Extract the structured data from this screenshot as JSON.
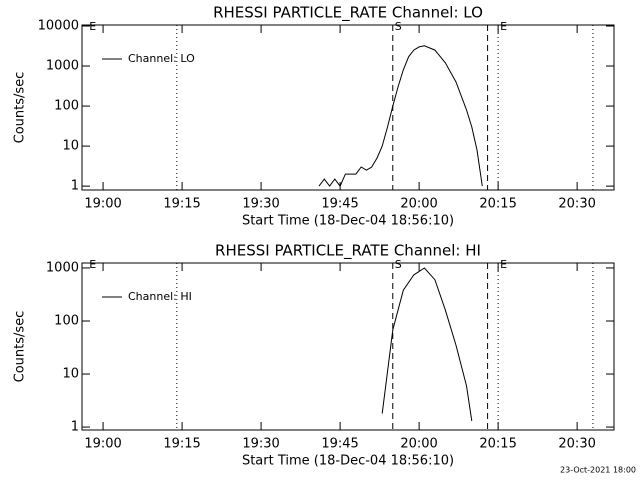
{
  "chart_data": [
    {
      "type": "line",
      "title": "RHESSI PARTICLE_RATE Channel: LO",
      "xlabel": "Start Time (18-Dec-04 18:56:10)",
      "ylabel": "Counts/sec",
      "log_y": true,
      "xlim": [
        "18:56",
        "20:37"
      ],
      "ylim": [
        0.8,
        10600
      ],
      "xticks": [
        "19:00",
        "19:15",
        "19:30",
        "19:45",
        "20:00",
        "20:15",
        "20:30"
      ],
      "yticks": [
        1,
        10,
        100,
        1000,
        10000
      ],
      "x": [
        "19:41",
        "19:42",
        "19:43",
        "19:44",
        "19:45",
        "19:46",
        "19:47",
        "19:48",
        "19:49",
        "19:50",
        "19:51",
        "19:52",
        "19:53",
        "19:54",
        "19:55",
        "19:56",
        "19:57",
        "19:58",
        "19:59",
        "20:00",
        "20:01",
        "20:03",
        "20:05",
        "20:07",
        "20:09",
        "20:10",
        "20:11",
        "20:12"
      ],
      "series": [
        {
          "name": "Channel: LO",
          "color": "#000000",
          "values": [
            1,
            1.5,
            1,
            1.5,
            1,
            2,
            2,
            2,
            3,
            2.5,
            3,
            5,
            10,
            30,
            100,
            300,
            800,
            1700,
            2500,
            3000,
            3200,
            2500,
            1200,
            400,
            80,
            30,
            8,
            1
          ]
        }
      ],
      "markers": [
        {
          "x": "18:57",
          "label": "E"
        },
        {
          "x": "19:14",
          "style": "dotted"
        },
        {
          "x": "19:55",
          "style": "dashed",
          "label": "S"
        },
        {
          "x": "20:13",
          "style": "dashed"
        },
        {
          "x": "20:15",
          "style": "dotted",
          "label": "E"
        },
        {
          "x": "20:33",
          "style": "dotted"
        }
      ]
    },
    {
      "type": "line",
      "title": "RHESSI PARTICLE_RATE Channel: HI",
      "xlabel": "Start Time (18-Dec-04 18:56:10)",
      "ylabel": "Counts/sec",
      "log_y": true,
      "xlim": [
        "18:56",
        "20:37"
      ],
      "ylim": [
        0.88,
        1240
      ],
      "xticks": [
        "19:00",
        "19:15",
        "19:30",
        "19:45",
        "20:00",
        "20:15",
        "20:30"
      ],
      "yticks": [
        1,
        10,
        100,
        1000
      ],
      "x": [
        "19:53",
        "19:55",
        "19:57",
        "19:59",
        "20:01",
        "20:03",
        "20:05",
        "20:07",
        "20:09",
        "20:10"
      ],
      "series": [
        {
          "name": "Channel: HI",
          "color": "#000000",
          "values": [
            1.8,
            68,
            380,
            740,
            1000,
            600,
            160,
            35,
            6,
            1.3
          ]
        }
      ],
      "markers": [
        {
          "x": "18:57",
          "label": "E"
        },
        {
          "x": "19:14",
          "style": "dotted"
        },
        {
          "x": "19:55",
          "style": "dashed",
          "label": "S"
        },
        {
          "x": "20:13",
          "style": "dashed"
        },
        {
          "x": "20:15",
          "style": "dotted",
          "label": "E"
        },
        {
          "x": "20:33",
          "style": "dotted"
        }
      ]
    }
  ],
  "footer": "23-Oct-2021 18:00"
}
